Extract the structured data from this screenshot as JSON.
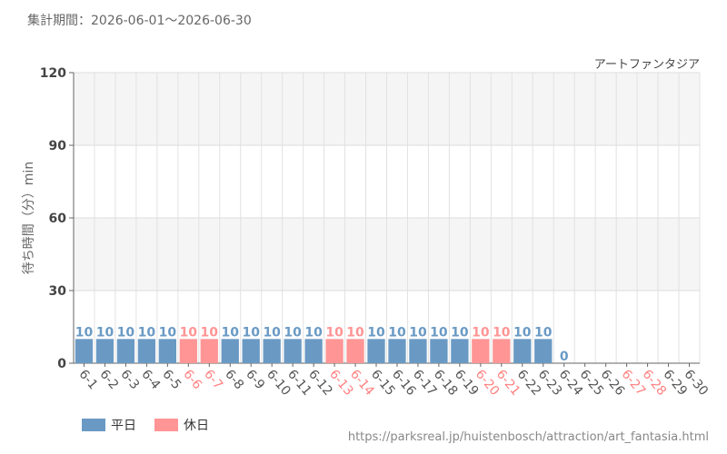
{
  "period_label": "集計期間：2026-06-01～2026-06-30",
  "source_url": "https://parksreal.jp/huistenbosch/attraction/art_fantasia.html",
  "legend": [
    {
      "label": "平日",
      "color": "#6a9ac4"
    },
    {
      "label": "休日",
      "color": "#ff9595"
    }
  ],
  "chart_data": {
    "type": "bar",
    "title": "アートファンタジア",
    "ylabel": "待ち時間（分）min",
    "xlabel": "",
    "ylim": [
      0,
      120
    ],
    "yticks": [
      0,
      30,
      60,
      90,
      120
    ],
    "grid": true,
    "legend_position": "bottom-left",
    "categories": [
      "6-1",
      "6-2",
      "6-3",
      "6-4",
      "6-5",
      "6-6",
      "6-7",
      "6-8",
      "6-9",
      "6-10",
      "6-11",
      "6-12",
      "6-13",
      "6-14",
      "6-15",
      "6-16",
      "6-17",
      "6-18",
      "6-19",
      "6-20",
      "6-21",
      "6-22",
      "6-23",
      "6-24",
      "6-25",
      "6-26",
      "6-27",
      "6-28",
      "6-29",
      "6-30"
    ],
    "values": [
      10,
      10,
      10,
      10,
      10,
      10,
      10,
      10,
      10,
      10,
      10,
      10,
      10,
      10,
      10,
      10,
      10,
      10,
      10,
      10,
      10,
      10,
      10,
      0,
      null,
      null,
      null,
      null,
      null,
      null
    ],
    "holidays": [
      "6-6",
      "6-7",
      "6-13",
      "6-14",
      "6-20",
      "6-21",
      "6-27",
      "6-28"
    ],
    "colors": {
      "weekday": "#6a9ac4",
      "holiday": "#ff9595",
      "weekday_label": "#555555",
      "holiday_label": "#ff8080"
    }
  }
}
